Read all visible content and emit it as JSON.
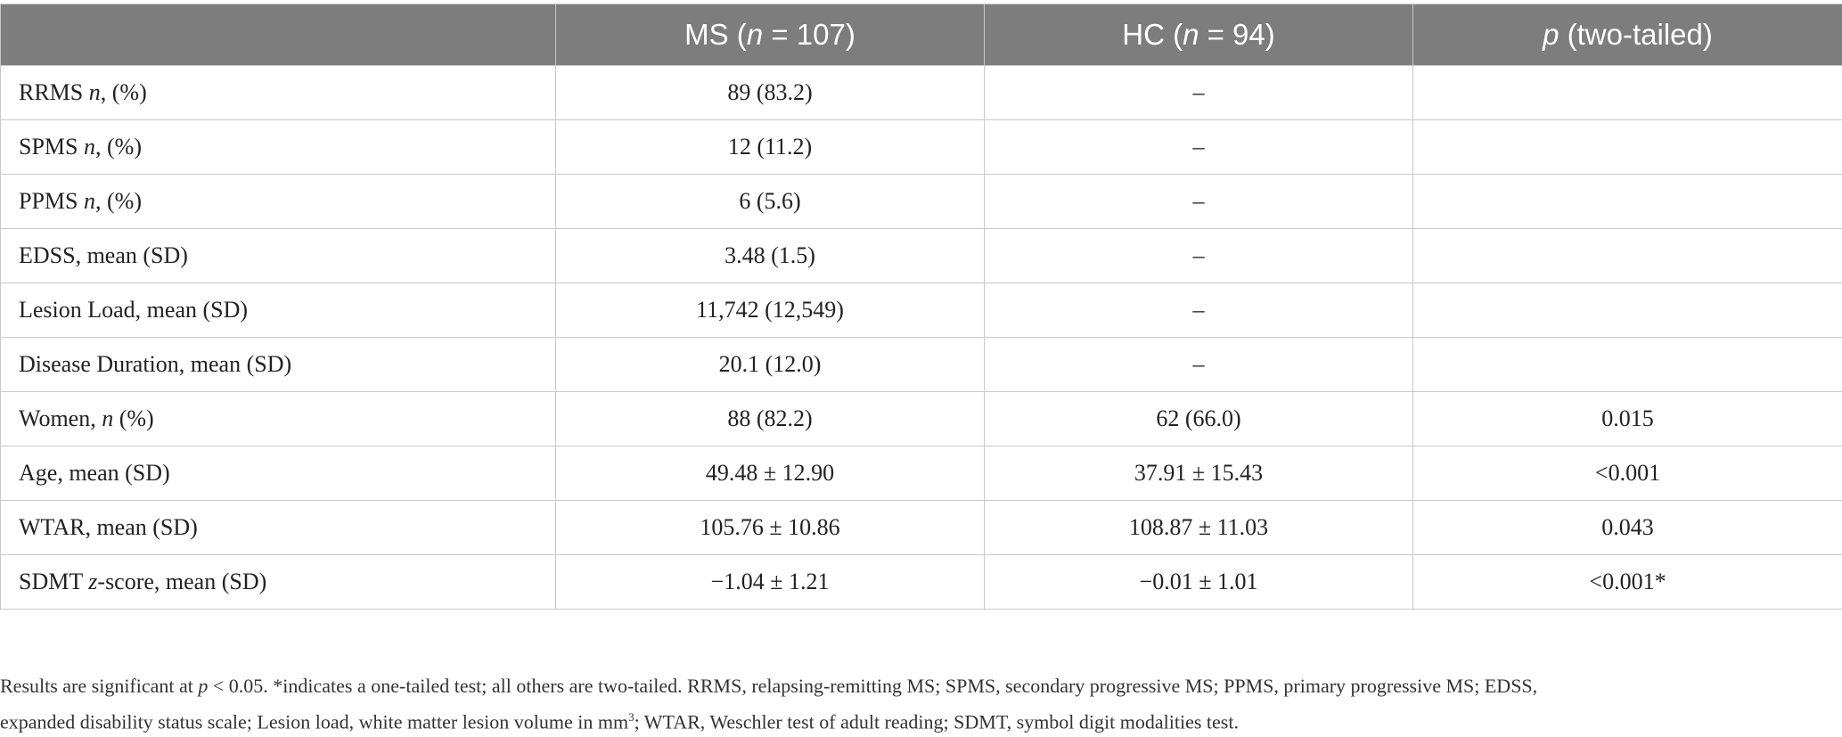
{
  "table": {
    "headers": [
      {
        "pre": "",
        "ital": "",
        "post": ""
      },
      {
        "pre": "MS (",
        "ital": "n",
        "post": " = 107)"
      },
      {
        "pre": "HC (",
        "ital": "n",
        "post": " = 94)"
      },
      {
        "pre": "",
        "ital": "p",
        "post": " (two-tailed)"
      }
    ],
    "rows": [
      {
        "label": {
          "pre": "RRMS ",
          "ital": "n",
          "post": ", (%)"
        },
        "ms": "89 (83.2)",
        "hc": "–",
        "p": ""
      },
      {
        "label": {
          "pre": "SPMS ",
          "ital": "n",
          "post": ", (%)"
        },
        "ms": "12 (11.2)",
        "hc": "–",
        "p": ""
      },
      {
        "label": {
          "pre": "PPMS ",
          "ital": "n",
          "post": ", (%)"
        },
        "ms": "6 (5.6)",
        "hc": "–",
        "p": ""
      },
      {
        "label": {
          "pre": "EDSS, mean (SD)",
          "ital": "",
          "post": ""
        },
        "ms": "3.48 (1.5)",
        "hc": "–",
        "p": ""
      },
      {
        "label": {
          "pre": "Lesion Load, mean (SD)",
          "ital": "",
          "post": ""
        },
        "ms": "11,742 (12,549)",
        "hc": "–",
        "p": ""
      },
      {
        "label": {
          "pre": "Disease Duration, mean (SD)",
          "ital": "",
          "post": ""
        },
        "ms": "20.1 (12.0)",
        "hc": "–",
        "p": ""
      },
      {
        "label": {
          "pre": "Women, ",
          "ital": "n",
          "post": " (%)"
        },
        "ms": "88 (82.2)",
        "hc": "62 (66.0)",
        "p": "0.015"
      },
      {
        "label": {
          "pre": "Age, mean (SD)",
          "ital": "",
          "post": ""
        },
        "ms": "49.48 ± 12.90",
        "hc": "37.91 ± 15.43",
        "p": "<0.001"
      },
      {
        "label": {
          "pre": "WTAR, mean (SD)",
          "ital": "",
          "post": ""
        },
        "ms": "105.76 ± 10.86",
        "hc": "108.87 ± 11.03",
        "p": "0.043"
      },
      {
        "label": {
          "pre": "SDMT ",
          "ital": "z",
          "post": "-score, mean (SD)"
        },
        "ms": "−1.04 ± 1.21",
        "hc": "−0.01 ± 1.01",
        "p": "<0.001*"
      }
    ]
  },
  "notes": {
    "line1_pre": "Results are significant at ",
    "line1_ital": "p",
    "line1_post": " < 0.05. *indicates a one-tailed test; all others are two-tailed. RRMS, relapsing-remitting MS; SPMS, secondary progressive MS; PPMS, primary progressive MS; EDSS,",
    "line2_pre": "expanded disability status scale; Lesion load, white matter lesion volume in mm",
    "line2_sup": "3",
    "line2_post": "; WTAR, Weschler test of adult reading; SDMT, symbol digit modalities test."
  }
}
